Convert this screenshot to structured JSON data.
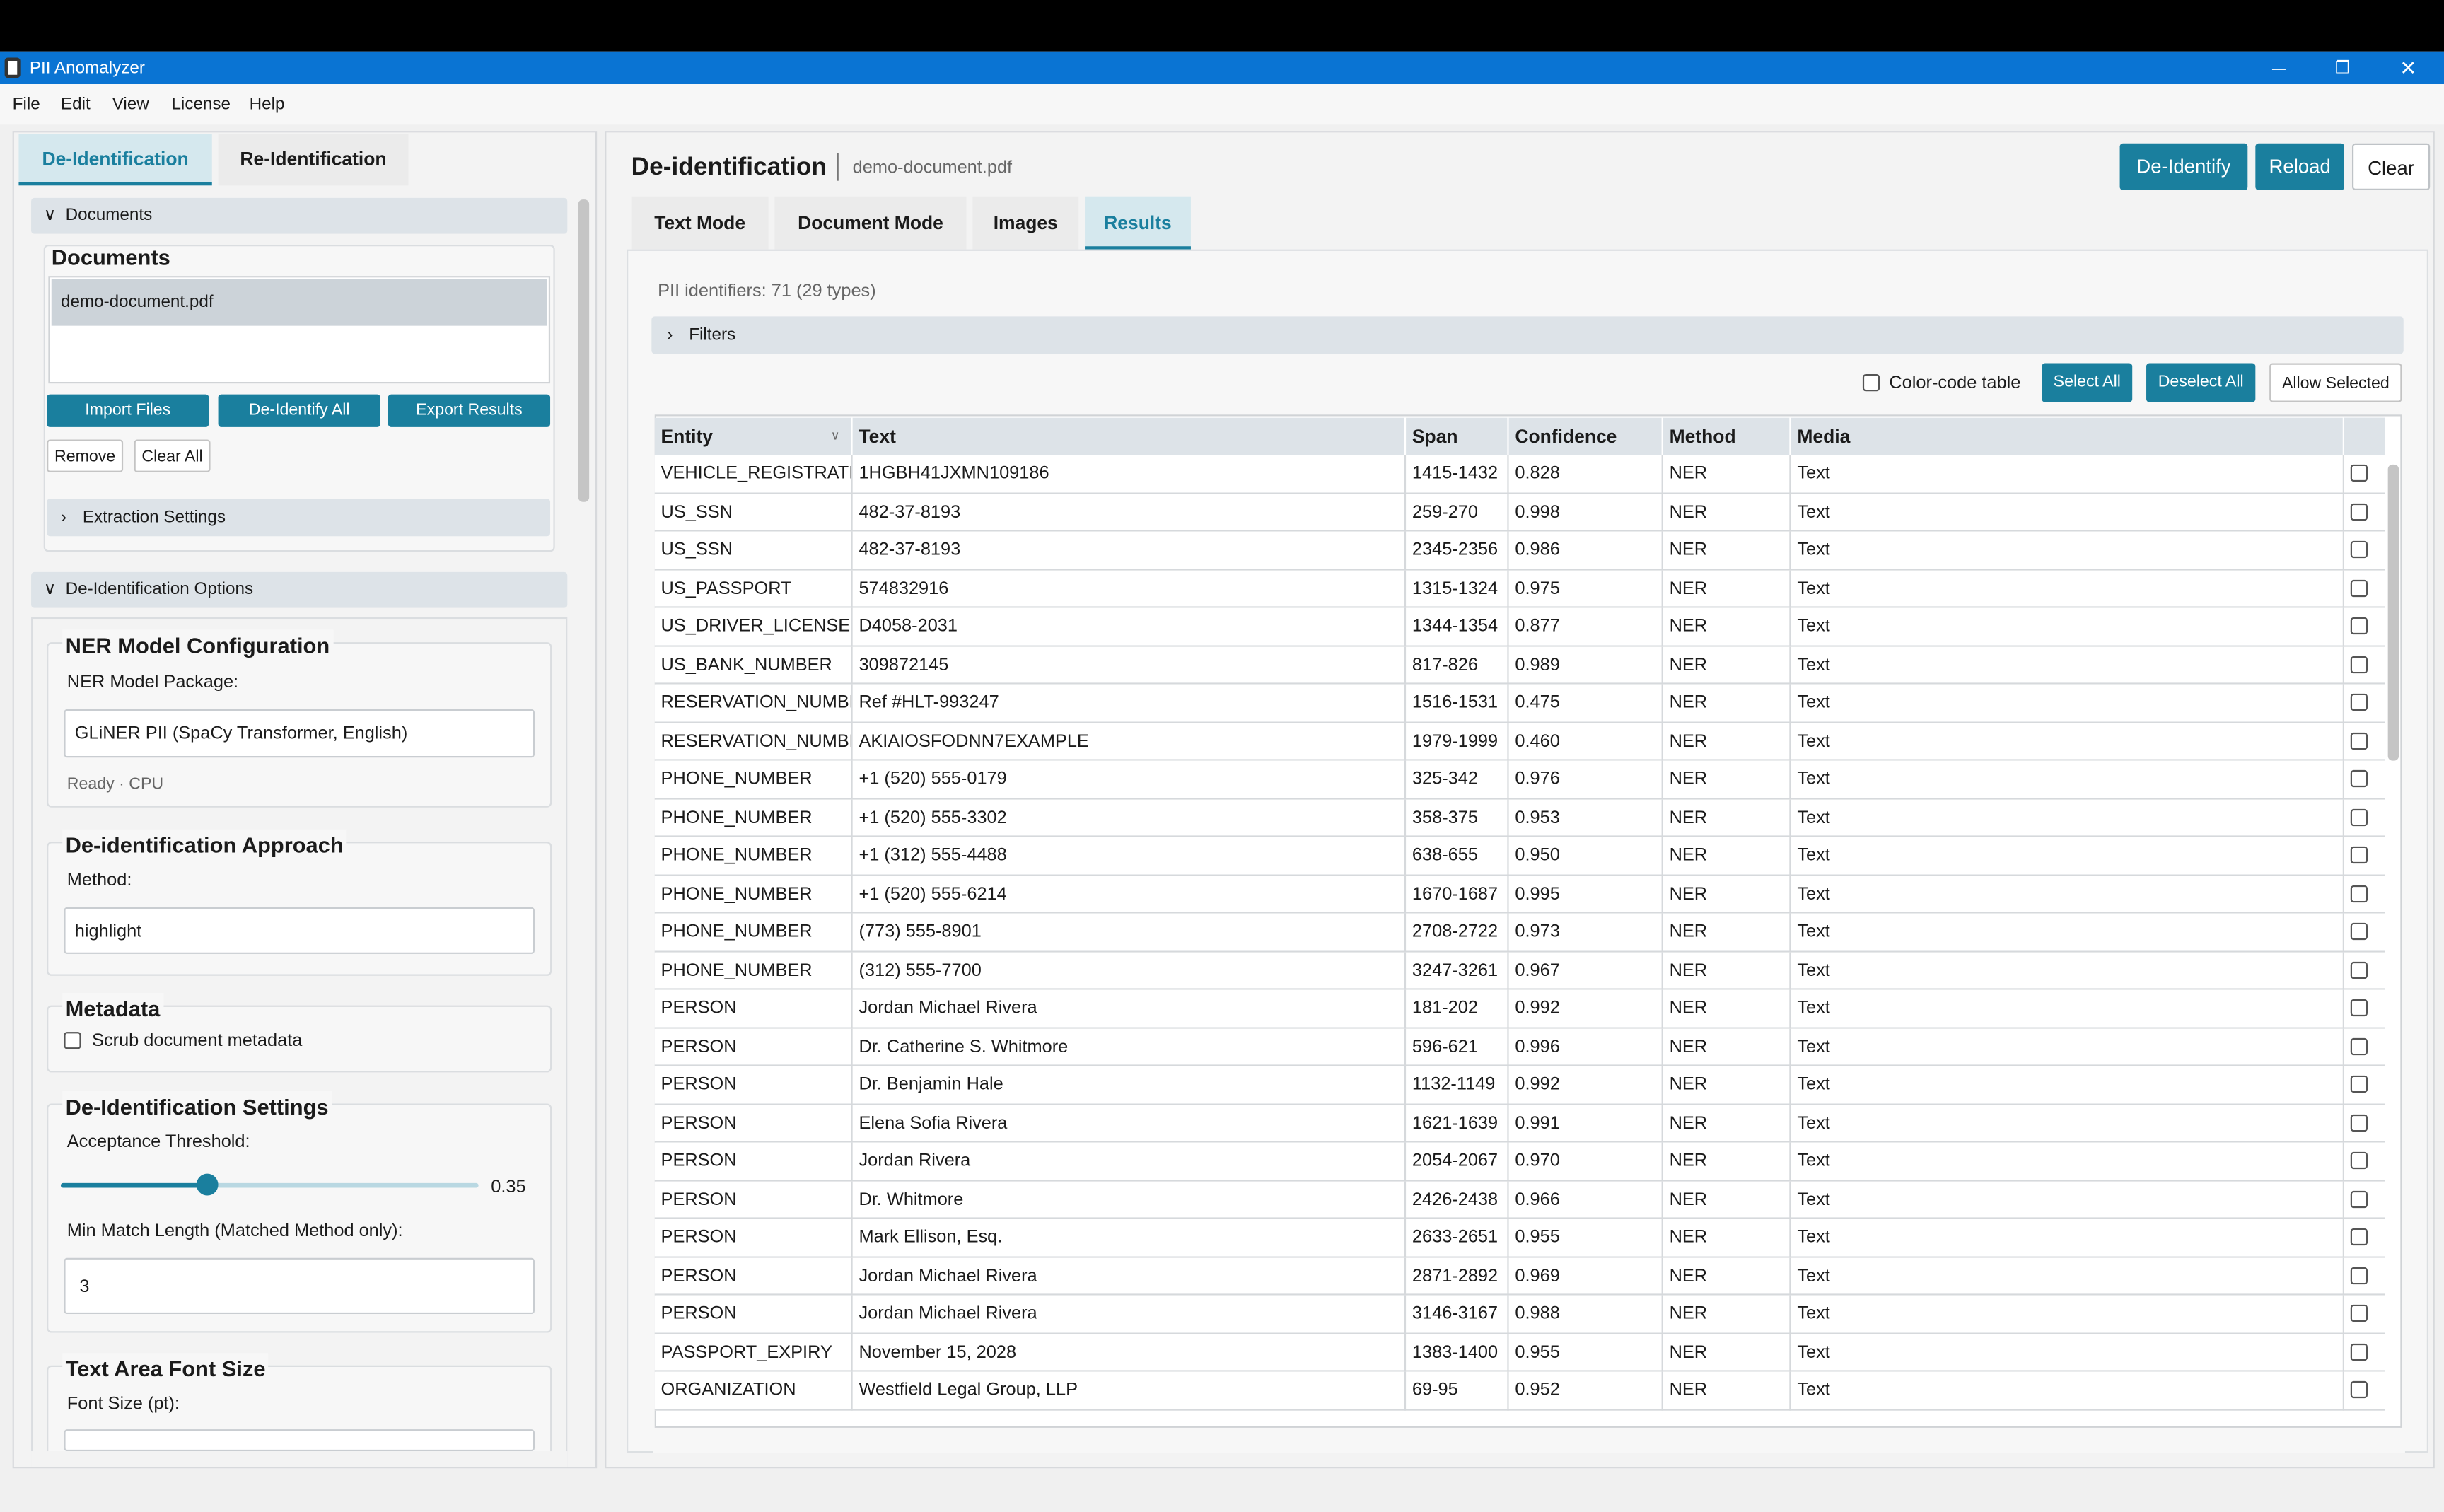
{
  "window": {
    "title": "PII Anomalyzer"
  },
  "menu": [
    "File",
    "Edit",
    "View",
    "License",
    "Help"
  ],
  "sidebar": {
    "tabs": [
      "De-Identification",
      "Re-Identification"
    ],
    "documents_section": "Documents",
    "documents_heading": "Documents",
    "files": [
      "demo-document.pdf"
    ],
    "buttons": [
      "Import Files",
      "De-Identify All",
      "Export Results"
    ],
    "small_buttons": [
      "Remove",
      "Clear All"
    ],
    "extraction": "Extraction Settings",
    "options_section": "De-Identification Options",
    "ner": {
      "heading": "NER Model Configuration",
      "label": "NER Model Package:",
      "value": "GLiNER PII (SpaCy Transformer, English)",
      "status": "Ready · CPU"
    },
    "approach": {
      "heading": "De-identification Approach",
      "label": "Method:",
      "value": "highlight"
    },
    "metadata": {
      "heading": "Metadata",
      "checkbox": "Scrub document metadata"
    },
    "settings": {
      "heading": "De-Identification Settings",
      "threshold_label": "Acceptance Threshold:",
      "threshold": 0.35,
      "min_label": "Min Match Length (Matched Method only):",
      "min_value": "3"
    },
    "font": {
      "heading": "Text Area Font Size",
      "label": "Font Size (pt):"
    }
  },
  "main": {
    "title": "De-identification",
    "file": "demo-document.pdf",
    "actions": [
      "De-Identify",
      "Reload",
      "Clear"
    ],
    "tabs": [
      "Text Mode",
      "Document Mode",
      "Images",
      "Results"
    ],
    "summary": "PII identifiers: 71 (29 types)",
    "filters": "Filters",
    "color_code": "Color-code table",
    "table_buttons": [
      "Select All",
      "Deselect All",
      "Allow Selected"
    ],
    "columns": [
      "Entity",
      "Text",
      "Span",
      "Confidence",
      "Method",
      "Media"
    ],
    "rows": [
      [
        "VEHICLE_REGISTRATION",
        "1HGBH41JXMN109186",
        "1415-1432",
        "0.828",
        "NER",
        "Text"
      ],
      [
        "US_SSN",
        "482-37-8193",
        "259-270",
        "0.998",
        "NER",
        "Text"
      ],
      [
        "US_SSN",
        "482-37-8193",
        "2345-2356",
        "0.986",
        "NER",
        "Text"
      ],
      [
        "US_PASSPORT",
        "574832916",
        "1315-1324",
        "0.975",
        "NER",
        "Text"
      ],
      [
        "US_DRIVER_LICENSE",
        "D4058-2031",
        "1344-1354",
        "0.877",
        "NER",
        "Text"
      ],
      [
        "US_BANK_NUMBER",
        "309872145",
        "817-826",
        "0.989",
        "NER",
        "Text"
      ],
      [
        "RESERVATION_NUMBER",
        "Ref #HLT-993247",
        "1516-1531",
        "0.475",
        "NER",
        "Text"
      ],
      [
        "RESERVATION_NUMBER",
        "AKIAIOSFODNN7EXAMPLE",
        "1979-1999",
        "0.460",
        "NER",
        "Text"
      ],
      [
        "PHONE_NUMBER",
        "+1 (520) 555-0179",
        "325-342",
        "0.976",
        "NER",
        "Text"
      ],
      [
        "PHONE_NUMBER",
        "+1 (520) 555-3302",
        "358-375",
        "0.953",
        "NER",
        "Text"
      ],
      [
        "PHONE_NUMBER",
        "+1 (312) 555-4488",
        "638-655",
        "0.950",
        "NER",
        "Text"
      ],
      [
        "PHONE_NUMBER",
        "+1 (520) 555-6214",
        "1670-1687",
        "0.995",
        "NER",
        "Text"
      ],
      [
        "PHONE_NUMBER",
        "(773) 555-8901",
        "2708-2722",
        "0.973",
        "NER",
        "Text"
      ],
      [
        "PHONE_NUMBER",
        "(312) 555-7700",
        "3247-3261",
        "0.967",
        "NER",
        "Text"
      ],
      [
        "PERSON",
        "Jordan Michael Rivera",
        "181-202",
        "0.992",
        "NER",
        "Text"
      ],
      [
        "PERSON",
        "Dr. Catherine S. Whitmore",
        "596-621",
        "0.996",
        "NER",
        "Text"
      ],
      [
        "PERSON",
        "Dr. Benjamin Hale",
        "1132-1149",
        "0.992",
        "NER",
        "Text"
      ],
      [
        "PERSON",
        "Elena Sofia Rivera",
        "1621-1639",
        "0.991",
        "NER",
        "Text"
      ],
      [
        "PERSON",
        "Jordan Rivera",
        "2054-2067",
        "0.970",
        "NER",
        "Text"
      ],
      [
        "PERSON",
        "Dr. Whitmore",
        "2426-2438",
        "0.966",
        "NER",
        "Text"
      ],
      [
        "PERSON",
        "Mark Ellison, Esq.",
        "2633-2651",
        "0.955",
        "NER",
        "Text"
      ],
      [
        "PERSON",
        "Jordan Michael Rivera",
        "2871-2892",
        "0.969",
        "NER",
        "Text"
      ],
      [
        "PERSON",
        "Jordan Michael Rivera",
        "3146-3167",
        "0.988",
        "NER",
        "Text"
      ],
      [
        "PASSPORT_EXPIRY",
        "November 15, 2028",
        "1383-1400",
        "0.955",
        "NER",
        "Text"
      ],
      [
        "ORGANIZATION",
        "Westfield Legal Group, LLP",
        "69-95",
        "0.952",
        "NER",
        "Text"
      ]
    ]
  }
}
